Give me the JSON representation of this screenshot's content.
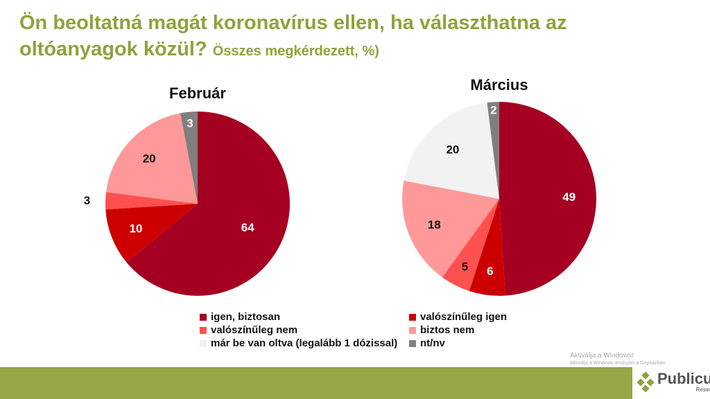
{
  "title": "Ön beoltatná magát koronavírus ellen, ha választhatna az oltóanyagok közül?",
  "subtitle": "Összes megkérdezett, %)",
  "chart_data": [
    {
      "type": "pie",
      "title": "Február",
      "categories": [
        "igen, biztosan",
        "valószínűleg igen",
        "valószínűleg nem",
        "biztos nem",
        "nt/nv"
      ],
      "values": [
        64,
        10,
        3,
        20,
        3
      ]
    },
    {
      "type": "pie",
      "title": "Március",
      "categories": [
        "igen, biztosan",
        "valószínűleg igen",
        "valószínűleg nem",
        "biztos nem",
        "már be van oltva (legalább 1 dózissal)",
        "nt/nv"
      ],
      "values": [
        49,
        6,
        5,
        18,
        20,
        2
      ]
    }
  ],
  "legend": [
    {
      "label": "igen, biztosan",
      "color": "#A50021"
    },
    {
      "label": "valószínűleg igen",
      "color": "#CC0000"
    },
    {
      "label": "valószínűleg nem",
      "color": "#FF5050"
    },
    {
      "label": "biztos nem",
      "color": "#FF9999"
    },
    {
      "label": "már be van oltva (legalább 1 dózissal)",
      "color": "#F2F2F2"
    },
    {
      "label": "nt/nv",
      "color": "#7F7F7F"
    }
  ],
  "watermark": {
    "line1": "Aktiválja a Windowst",
    "line2": "Aktiválja a Windows rendszert a Gépházban."
  },
  "logo": {
    "name": "Publicus",
    "sub": "Research"
  }
}
